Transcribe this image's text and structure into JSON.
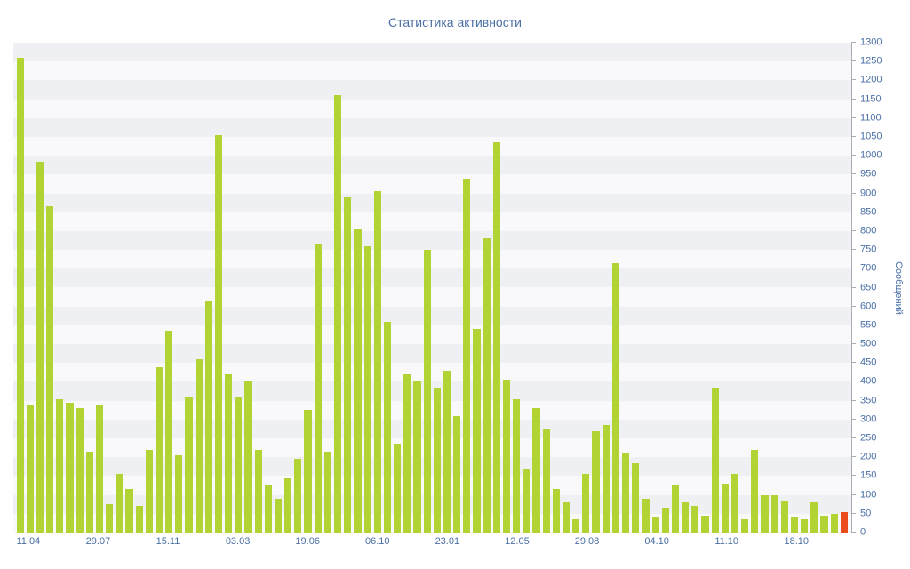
{
  "chart_data": {
    "type": "bar",
    "title": "Статистика активности",
    "xlabel": "",
    "ylabel": "Сообщений",
    "ylim": [
      0,
      1300
    ],
    "y_tick_step": 50,
    "y_tick_labels": [
      "0",
      "50",
      "100",
      "150",
      "200",
      "250",
      "300",
      "350",
      "400",
      "450",
      "500",
      "550",
      "600",
      "650",
      "700",
      "750",
      "800",
      "850",
      "900",
      "950",
      "1000",
      "1050",
      "1100",
      "1150",
      "1200",
      "1250",
      "1300"
    ],
    "x_tick_labels": [
      {
        "label": "11.04",
        "bar_index": 1
      },
      {
        "label": "29.07",
        "bar_index": 8
      },
      {
        "label": "15.11",
        "bar_index": 15
      },
      {
        "label": "03.03",
        "bar_index": 22
      },
      {
        "label": "19.06",
        "bar_index": 29
      },
      {
        "label": "06.10",
        "bar_index": 36
      },
      {
        "label": "23.01",
        "bar_index": 43
      },
      {
        "label": "12.05",
        "bar_index": 50
      },
      {
        "label": "29.08",
        "bar_index": 57
      },
      {
        "label": "04.10",
        "bar_index": 64
      },
      {
        "label": "11.10",
        "bar_index": 71
      },
      {
        "label": "18.10",
        "bar_index": 78
      }
    ],
    "series": [
      {
        "name": "Сообщений",
        "values": [
          1260,
          340,
          985,
          865,
          355,
          345,
          330,
          215,
          340,
          75,
          155,
          115,
          70,
          220,
          440,
          535,
          205,
          360,
          460,
          615,
          1055,
          420,
          360,
          400,
          220,
          125,
          90,
          145,
          195,
          325,
          765,
          215,
          1160,
          890,
          805,
          760,
          905,
          560,
          235,
          420,
          400,
          750,
          385,
          430,
          310,
          940,
          540,
          780,
          1035,
          405,
          355,
          170,
          330,
          275,
          115,
          80,
          35,
          155,
          270,
          285,
          715,
          210,
          185,
          90,
          40,
          65,
          125,
          80,
          70,
          45,
          385,
          130,
          155,
          35,
          220,
          100,
          100,
          85,
          40,
          35,
          80,
          45,
          50,
          55
        ]
      }
    ],
    "legend": "none",
    "grid": "horizontal-bands",
    "colors": {
      "bar": "#b1d334",
      "last_bar": "#ea4c1e",
      "axis_text": "#4a6fa5",
      "axis_line": "#a9adb3",
      "stripe_dark": "#eff0f3",
      "stripe_light": "#f9f9fb",
      "background": "#ffffff"
    }
  }
}
